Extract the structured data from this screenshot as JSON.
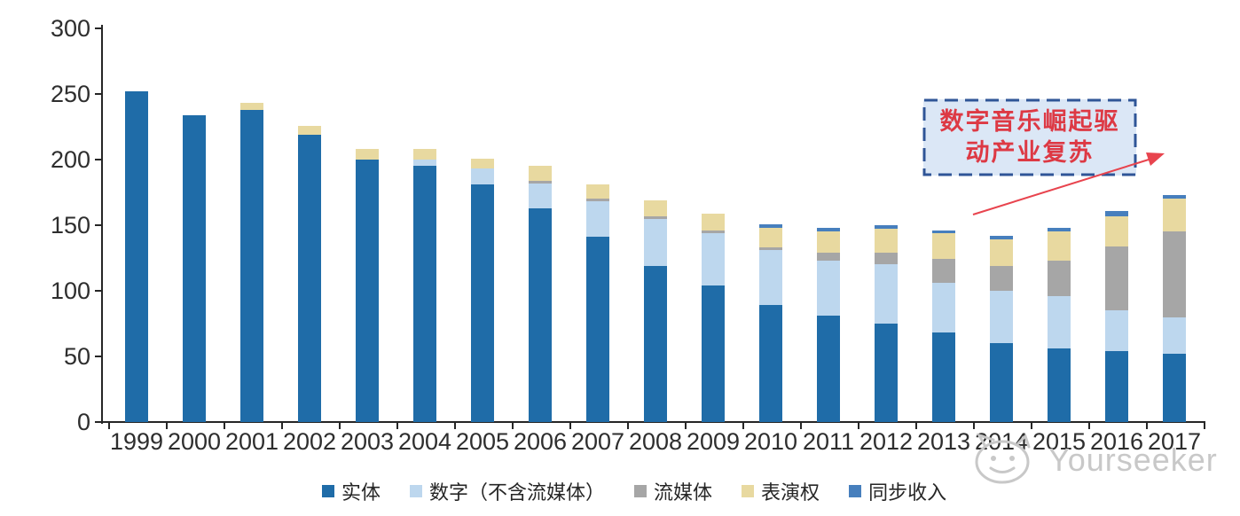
{
  "page": {
    "background": "#ffffff"
  },
  "watermark": {
    "text": "Yourseeker",
    "color": "#c8c8c8"
  },
  "annotation": {
    "line1": "数字音乐崛起驱",
    "line2": "动产业复苏",
    "text_color": "#dd3944",
    "box_fill": "#dbe7f6",
    "border_color": "#2f5597",
    "arrow_color": "#e8444e"
  },
  "chart_data": {
    "type": "bar",
    "stacked": true,
    "title": "",
    "xlabel": "",
    "ylabel": "",
    "grid": false,
    "legend_position": "bottom",
    "ylim": [
      0,
      300
    ],
    "y_ticks": [
      0,
      50,
      100,
      150,
      200,
      250,
      300
    ],
    "categories": [
      "1999",
      "2000",
      "2001",
      "2002",
      "2003",
      "2004",
      "2005",
      "2006",
      "2007",
      "2008",
      "2009",
      "2010",
      "2011",
      "2012",
      "2013",
      "2014",
      "2015",
      "2016",
      "2017"
    ],
    "series": [
      {
        "name": "实体",
        "color": "#1f6ca8",
        "values": [
          252,
          234,
          238,
          219,
          200,
          195,
          181,
          163,
          141,
          119,
          104,
          89,
          81,
          75,
          68,
          60,
          56,
          54,
          52
        ]
      },
      {
        "name": "数字（不含流媒体）",
        "color": "#bdd7ee",
        "values": [
          0,
          0,
          0,
          0,
          0,
          5,
          12,
          19,
          27,
          36,
          40,
          42,
          42,
          45,
          38,
          40,
          40,
          31,
          28
        ]
      },
      {
        "name": "流媒体",
        "color": "#a6a6a6",
        "values": [
          0,
          0,
          0,
          0,
          0,
          0,
          0,
          2,
          2,
          2,
          2,
          2,
          6,
          9,
          18,
          19,
          27,
          49,
          65
        ]
      },
      {
        "name": "表演权",
        "color": "#e8d9a0",
        "values": [
          0,
          0,
          5,
          7,
          8,
          8,
          8,
          11,
          11,
          12,
          13,
          15,
          16,
          18,
          20,
          20,
          22,
          23,
          25
        ]
      },
      {
        "name": "同步收入",
        "color": "#477fbd",
        "values": [
          0,
          0,
          0,
          0,
          0,
          0,
          0,
          0,
          0,
          0,
          0,
          3,
          3,
          3,
          2,
          3,
          3,
          4,
          3
        ]
      }
    ]
  }
}
